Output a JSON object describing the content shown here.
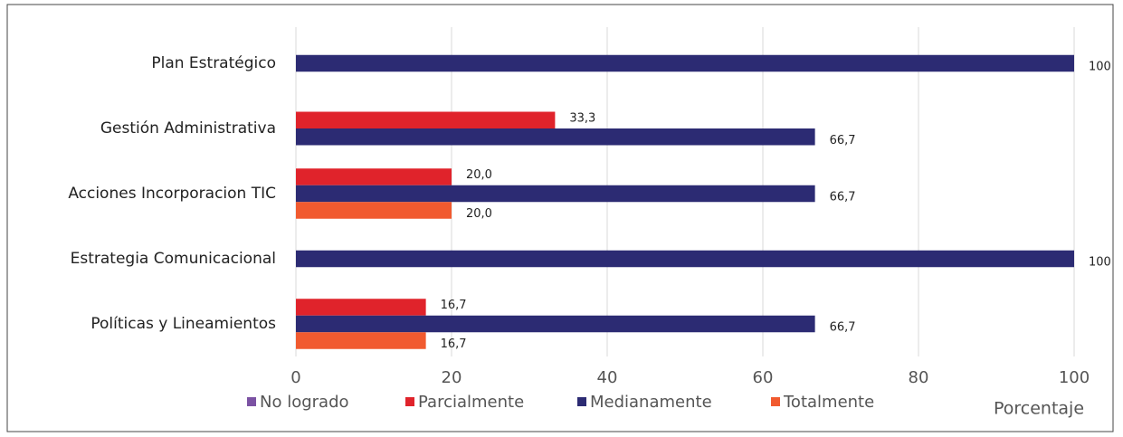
{
  "chart_data": {
    "type": "barh",
    "categories": [
      "Plan Estratégico",
      "Gestión Administrativa",
      "Acciones Incorporacion TIC",
      "Estrategia Comunicacional",
      "Políticas y Lineamientos"
    ],
    "series": [
      {
        "name": "No logrado",
        "color": "#7b52a3",
        "values": [
          null,
          null,
          null,
          null,
          null
        ]
      },
      {
        "name": "Parcialmente",
        "color": "#e0232b",
        "values": [
          null,
          33.3,
          20.0,
          null,
          16.7
        ],
        "value_labels": [
          null,
          "33,3",
          "20,0",
          null,
          "16,7"
        ]
      },
      {
        "name": "Medianamente",
        "color": "#2c2b73",
        "values": [
          100,
          66.7,
          66.7,
          100,
          66.7
        ],
        "value_labels": [
          "100",
          "66,7",
          "66,7",
          "100",
          "66,7"
        ]
      },
      {
        "name": "Totalmente",
        "color": "#f15a2f",
        "values": [
          null,
          null,
          20.0,
          null,
          16.7
        ],
        "value_labels": [
          null,
          null,
          "20,0",
          null,
          "16,7"
        ]
      }
    ],
    "xlabel": "Porcentaje",
    "xlim": [
      0,
      100
    ],
    "xticks": [
      0,
      20,
      40,
      60,
      80,
      100
    ],
    "grid": true,
    "legend": "bottom"
  }
}
